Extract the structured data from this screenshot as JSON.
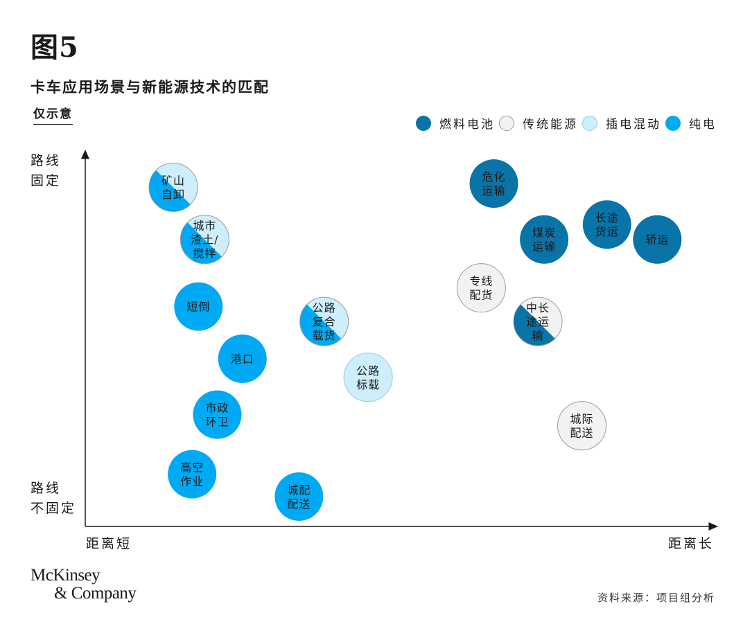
{
  "figure": {
    "label": "图5",
    "title": "卡车应用场景与新能源技术的匹配",
    "subtitle": "仅示意"
  },
  "colors": {
    "fuel_cell": "#0a73a7",
    "traditional": "#f2f2f2",
    "plugin_hybrid": "#cdeefa",
    "bev": "#00a9f4"
  },
  "legend": [
    {
      "key": "fuel_cell",
      "label": "燃料电池"
    },
    {
      "key": "traditional",
      "label": "传统能源"
    },
    {
      "key": "plugin_hybrid",
      "label": "插电混动"
    },
    {
      "key": "bev",
      "label": "纯电"
    }
  ],
  "axes": {
    "y_top": [
      "路线",
      "固定"
    ],
    "y_bottom": [
      "路线",
      "不固定"
    ],
    "x_left": "距离短",
    "x_right": "距离长"
  },
  "chart_data": {
    "type": "scatter",
    "xlim": [
      0,
      100
    ],
    "ylim": [
      0,
      100
    ],
    "points": [
      {
        "name": "矿山自卸",
        "label_lines": [
          "矿山",
          "自卸"
        ],
        "x": 14,
        "y": 91,
        "types": [
          "bev",
          "plugin_hybrid"
        ],
        "split": "diagonal"
      },
      {
        "name": "城市渣土/搅拌",
        "label_lines": [
          "城市",
          "渣土/",
          "搅拌"
        ],
        "x": 19,
        "y": 77,
        "types": [
          "bev",
          "plugin_hybrid"
        ],
        "split": "diagonal"
      },
      {
        "name": "短倒",
        "label_lines": [
          "短倒"
        ],
        "x": 18,
        "y": 59,
        "types": [
          "bev"
        ]
      },
      {
        "name": "港口",
        "label_lines": [
          "港口"
        ],
        "x": 25,
        "y": 45,
        "types": [
          "bev"
        ]
      },
      {
        "name": "市政环卫",
        "label_lines": [
          "市政",
          "环卫"
        ],
        "x": 21,
        "y": 30,
        "types": [
          "bev"
        ]
      },
      {
        "name": "高空作业",
        "label_lines": [
          "高空",
          "作业"
        ],
        "x": 17,
        "y": 14,
        "types": [
          "bev"
        ]
      },
      {
        "name": "城配配送",
        "label_lines": [
          "城配",
          "配送"
        ],
        "x": 34,
        "y": 8,
        "types": [
          "bev"
        ]
      },
      {
        "name": "公路复合载货",
        "label_lines": [
          "公路",
          "复合",
          "载货"
        ],
        "x": 38,
        "y": 55,
        "types": [
          "bev",
          "plugin_hybrid"
        ],
        "split": "diagonal"
      },
      {
        "name": "公路标载",
        "label_lines": [
          "公路",
          "标载"
        ],
        "x": 45,
        "y": 40,
        "types": [
          "plugin_hybrid"
        ]
      },
      {
        "name": "危化运输",
        "label_lines": [
          "危化",
          "运输"
        ],
        "x": 65,
        "y": 92,
        "types": [
          "fuel_cell"
        ]
      },
      {
        "name": "煤炭运输",
        "label_lines": [
          "煤炭",
          "运输"
        ],
        "x": 73,
        "y": 77,
        "types": [
          "fuel_cell"
        ]
      },
      {
        "name": "长途货运",
        "label_lines": [
          "长途",
          "货运"
        ],
        "x": 83,
        "y": 81,
        "types": [
          "fuel_cell"
        ]
      },
      {
        "name": "轿运",
        "label_lines": [
          "轿运"
        ],
        "x": 91,
        "y": 77,
        "types": [
          "fuel_cell"
        ]
      },
      {
        "name": "专线配货",
        "label_lines": [
          "专线",
          "配货"
        ],
        "x": 63,
        "y": 64,
        "types": [
          "traditional"
        ]
      },
      {
        "name": "中长途运输",
        "label_lines": [
          "中长",
          "途运",
          "输"
        ],
        "x": 72,
        "y": 55,
        "types": [
          "fuel_cell",
          "traditional"
        ],
        "split": "diagonal"
      },
      {
        "name": "城际配送",
        "label_lines": [
          "城际",
          "配送"
        ],
        "x": 79,
        "y": 27,
        "types": [
          "traditional"
        ]
      }
    ]
  },
  "footer": {
    "brand_line1": "McKinsey",
    "brand_line2": "& Company",
    "source": "资料来源：项目组分析"
  }
}
